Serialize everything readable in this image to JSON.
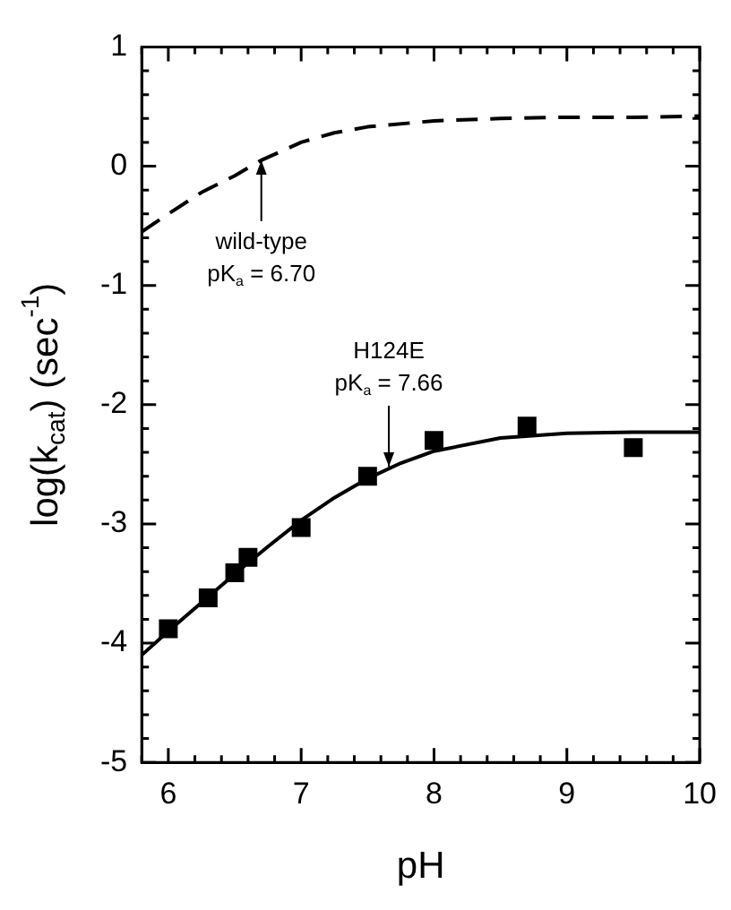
{
  "chart_data": {
    "type": "scatter",
    "xlabel": "pH",
    "ylabel": "log(k$_{cat}$) (sec$^{-1}$)",
    "xlim": [
      5.8,
      10
    ],
    "ylim": [
      -5,
      1
    ],
    "xticks": [
      {
        "value": 5.8,
        "label": null
      },
      6,
      {
        "value": 6.2,
        "label": null
      },
      {
        "value": 6.4,
        "label": null
      },
      {
        "value": 6.6,
        "label": null
      },
      {
        "value": 6.8,
        "label": null
      },
      7,
      {
        "value": 7.2,
        "label": null
      },
      {
        "value": 7.4,
        "label": null
      },
      {
        "value": 7.6,
        "label": null
      },
      {
        "value": 7.8,
        "label": null
      },
      8,
      {
        "value": 8.2,
        "label": null
      },
      {
        "value": 8.4,
        "label": null
      },
      {
        "value": 8.6,
        "label": null
      },
      {
        "value": 8.8,
        "label": null
      },
      9,
      {
        "value": 9.2,
        "label": null
      },
      {
        "value": 9.4,
        "label": null
      },
      {
        "value": 9.6,
        "label": null
      },
      {
        "value": 9.8,
        "label": null
      },
      10
    ],
    "yticks": [
      -5,
      {
        "value": -4.8,
        "label": null
      },
      {
        "value": -4.6,
        "label": null
      },
      {
        "value": -4.4,
        "label": null
      },
      {
        "value": -4.2,
        "label": null
      },
      -4,
      {
        "value": -3.8,
        "label": null
      },
      {
        "value": -3.6,
        "label": null
      },
      {
        "value": -3.4,
        "label": null
      },
      {
        "value": -3.2,
        "label": null
      },
      -3,
      {
        "value": -2.8,
        "label": null
      },
      {
        "value": -2.6,
        "label": null
      },
      {
        "value": -2.4,
        "label": null
      },
      {
        "value": -2.2,
        "label": null
      },
      -2,
      {
        "value": -1.8,
        "label": null
      },
      {
        "value": -1.6,
        "label": null
      },
      {
        "value": -1.4,
        "label": null
      },
      {
        "value": -1.2,
        "label": null
      },
      -1,
      {
        "value": -0.8,
        "label": null
      },
      {
        "value": -0.6,
        "label": null
      },
      {
        "value": -0.4,
        "label": null
      },
      {
        "value": -0.2,
        "label": null
      },
      0,
      {
        "value": 0.2,
        "label": null
      },
      {
        "value": 0.4,
        "label": null
      },
      {
        "value": 0.6,
        "label": null
      },
      {
        "value": 0.8,
        "label": null
      },
      1
    ],
    "grid": false,
    "legend": false,
    "series": [
      {
        "type": "line",
        "color": "#000000",
        "marker": "none",
        "line_style": "dashed",
        "x": [
          5.8,
          6,
          6.25,
          6.5,
          6.7,
          7,
          7.25,
          7.5,
          8,
          8.5,
          9,
          9.5,
          10
        ],
        "values": [
          -0.55,
          -0.4,
          -0.22,
          -0.08,
          0.05,
          0.2,
          0.28,
          0.33,
          0.38,
          0.4,
          0.41,
          0.41,
          0.42
        ]
      },
      {
        "type": "line",
        "color": "#000000",
        "marker": "none",
        "line_style": "solid",
        "x": [
          5.8,
          6,
          6.25,
          6.5,
          6.75,
          7,
          7.25,
          7.5,
          7.75,
          8,
          8.5,
          9,
          9.5,
          10
        ],
        "values": [
          -4.1,
          -3.9,
          -3.66,
          -3.42,
          -3.19,
          -2.97,
          -2.78,
          -2.62,
          -2.49,
          -2.39,
          -2.28,
          -2.24,
          -2.23,
          -2.23
        ]
      },
      {
        "type": "scatter",
        "color": "#000000",
        "marker": "square",
        "x": [
          6,
          6.3,
          6.5,
          6.6,
          7,
          7.5,
          8,
          8.7,
          9.5
        ],
        "values": [
          -3.88,
          -3.62,
          -3.41,
          -3.28,
          -3.03,
          -2.6,
          -2.3,
          -2.18,
          -2.36
        ]
      }
    ],
    "annotations": [
      {
        "text": "wild-type\npK$_{a}$ = 6.70",
        "x": 6.7,
        "y": 0.08
      },
      {
        "text": "H124E\npK$_{a}$ = 7.66",
        "x": 7.66,
        "y": -2.55
      }
    ]
  }
}
